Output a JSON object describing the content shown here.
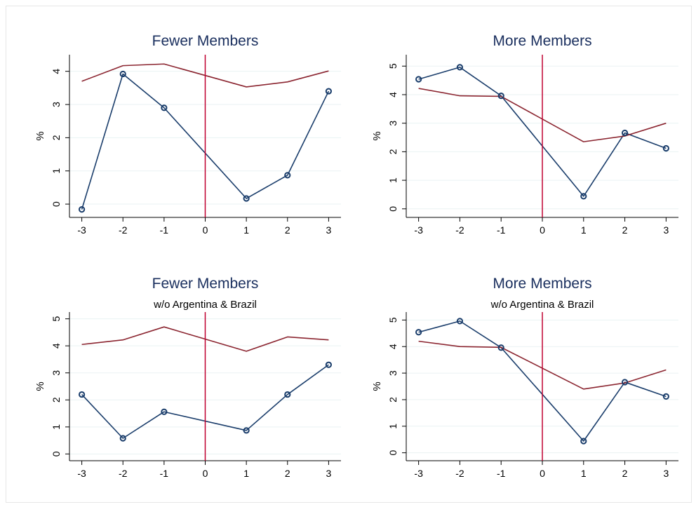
{
  "chart_data": [
    {
      "type": "line",
      "title": "Fewer Members",
      "subtitle": "",
      "ylabel": "%",
      "x": [
        -3,
        -2,
        -1,
        0,
        1,
        2,
        3
      ],
      "x_ticks": [
        "-3",
        "-2",
        "-1",
        "0",
        "1",
        "2",
        "3"
      ],
      "y_ticks": [
        "0",
        "1",
        "2",
        "3",
        "4"
      ],
      "ylim": [
        -0.4,
        4.5
      ],
      "xlim": [
        -3.3,
        3.3
      ],
      "vline_x": 0,
      "series": [
        {
          "color": "#1a3d6b",
          "markers": true,
          "values": [
            -0.16,
            3.92,
            2.9,
            null,
            0.17,
            0.87,
            3.4
          ],
          "x": [
            -3,
            -2,
            -1,
            null,
            1,
            2,
            3
          ]
        },
        {
          "color": "#8b2530",
          "markers": false,
          "values": [
            3.7,
            4.17,
            4.22,
            null,
            3.53,
            3.68,
            4.01
          ],
          "x": [
            -3,
            -2,
            -1,
            null,
            1,
            2,
            3
          ]
        }
      ]
    },
    {
      "type": "line",
      "title": "More Members",
      "subtitle": "",
      "ylabel": "%",
      "x": [
        -3,
        -2,
        -1,
        0,
        1,
        2,
        3
      ],
      "x_ticks": [
        "-3",
        "-2",
        "-1",
        "0",
        "1",
        "2",
        "3"
      ],
      "y_ticks": [
        "0",
        "1",
        "2",
        "3",
        "4",
        "5"
      ],
      "ylim": [
        -0.3,
        5.4
      ],
      "xlim": [
        -3.3,
        3.3
      ],
      "vline_x": 0,
      "series": [
        {
          "color": "#1a3d6b",
          "markers": true,
          "values": [
            4.54,
            4.96,
            3.96,
            null,
            0.44,
            2.66,
            2.12
          ],
          "x": [
            -3,
            -2,
            -1,
            null,
            1,
            2,
            3
          ]
        },
        {
          "color": "#8b2530",
          "markers": false,
          "values": [
            4.22,
            3.96,
            3.94,
            null,
            2.35,
            2.55,
            3.0
          ],
          "x": [
            -3,
            -2,
            -1,
            null,
            1,
            2,
            3
          ]
        }
      ]
    },
    {
      "type": "line",
      "title": "Fewer Members",
      "subtitle": "w/o Argentina & Brazil",
      "ylabel": "%",
      "x": [
        -3,
        -2,
        -1,
        0,
        1,
        2,
        3
      ],
      "x_ticks": [
        "-3",
        "-2",
        "-1",
        "0",
        "1",
        "2",
        "3"
      ],
      "y_ticks": [
        "0",
        "1",
        "2",
        "3",
        "4",
        "5"
      ],
      "ylim": [
        -0.25,
        5.25
      ],
      "xlim": [
        -3.3,
        3.3
      ],
      "vline_x": 0,
      "series": [
        {
          "color": "#1a3d6b",
          "markers": true,
          "values": [
            2.2,
            0.58,
            1.56,
            null,
            0.87,
            2.2,
            3.3
          ],
          "x": [
            -3,
            -2,
            -1,
            null,
            1,
            2,
            3
          ]
        },
        {
          "color": "#8b2530",
          "markers": false,
          "values": [
            4.05,
            4.22,
            4.7,
            null,
            3.8,
            4.33,
            4.22
          ],
          "x": [
            -3,
            -2,
            -1,
            null,
            1,
            2,
            3
          ]
        }
      ]
    },
    {
      "type": "line",
      "title": "More Members",
      "subtitle": "w/o Argentina & Brazil",
      "ylabel": "%",
      "x": [
        -3,
        -2,
        -1,
        0,
        1,
        2,
        3
      ],
      "x_ticks": [
        "-3",
        "-2",
        "-1",
        "0",
        "1",
        "2",
        "3"
      ],
      "y_ticks": [
        "0",
        "1",
        "2",
        "3",
        "4",
        "5"
      ],
      "ylim": [
        -0.3,
        5.3
      ],
      "xlim": [
        -3.3,
        3.3
      ],
      "vline_x": 0,
      "series": [
        {
          "color": "#1a3d6b",
          "markers": true,
          "values": [
            4.54,
            4.96,
            3.96,
            null,
            0.44,
            2.66,
            2.12
          ],
          "x": [
            -3,
            -2,
            -1,
            null,
            1,
            2,
            3
          ]
        },
        {
          "color": "#8b2530",
          "markers": false,
          "values": [
            4.2,
            4.0,
            3.97,
            null,
            2.4,
            2.63,
            3.12
          ],
          "x": [
            -3,
            -2,
            -1,
            null,
            1,
            2,
            3
          ]
        }
      ]
    }
  ],
  "vline_color": "#c00030",
  "grid_color": "#eaf2f3"
}
